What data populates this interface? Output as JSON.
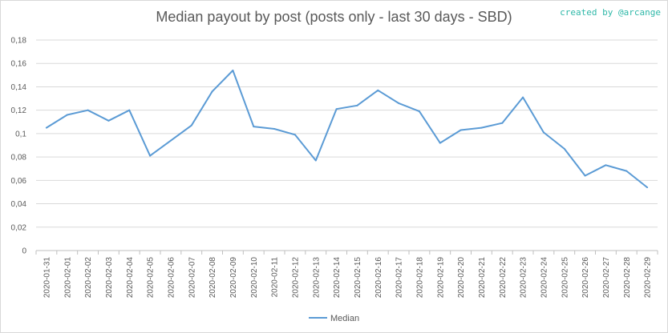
{
  "chart_data": {
    "type": "line",
    "title": "Median payout by post (posts only - last 30 days - SBD)",
    "credit": "created by @arcange",
    "xlabel": "",
    "ylabel": "",
    "ylim": [
      0,
      0.18
    ],
    "y_ticks": [
      0,
      0.02,
      0.04,
      0.06,
      0.08,
      0.1,
      0.12,
      0.14,
      0.16,
      0.18
    ],
    "y_tick_labels": [
      "0",
      "0,02",
      "0,04",
      "0,06",
      "0,08",
      "0,1",
      "0,12",
      "0,14",
      "0,16",
      "0,18"
    ],
    "grid": true,
    "legend": "bottom",
    "categories": [
      "2020-01-31",
      "2020-02-01",
      "2020-02-02",
      "2020-02-03",
      "2020-02-04",
      "2020-02-05",
      "2020-02-06",
      "2020-02-07",
      "2020-02-08",
      "2020-02-09",
      "2020-02-10",
      "2020-02-11",
      "2020-02-12",
      "2020-02-13",
      "2020-02-14",
      "2020-02-15",
      "2020-02-16",
      "2020-02-17",
      "2020-02-18",
      "2020-02-19",
      "2020-02-20",
      "2020-02-21",
      "2020-02-22",
      "2020-02-23",
      "2020-02-24",
      "2020-02-25",
      "2020-02-26",
      "2020-02-27",
      "2020-02-28",
      "2020-02-29"
    ],
    "series": [
      {
        "name": "Median",
        "color": "#5b9bd5",
        "values": [
          0.105,
          0.116,
          0.12,
          0.111,
          0.12,
          0.081,
          0.094,
          0.107,
          0.136,
          0.154,
          0.106,
          0.104,
          0.099,
          0.077,
          0.121,
          0.124,
          0.137,
          0.126,
          0.119,
          0.092,
          0.103,
          0.105,
          0.109,
          0.131,
          0.101,
          0.087,
          0.064,
          0.073,
          0.068,
          0.054
        ]
      }
    ]
  }
}
